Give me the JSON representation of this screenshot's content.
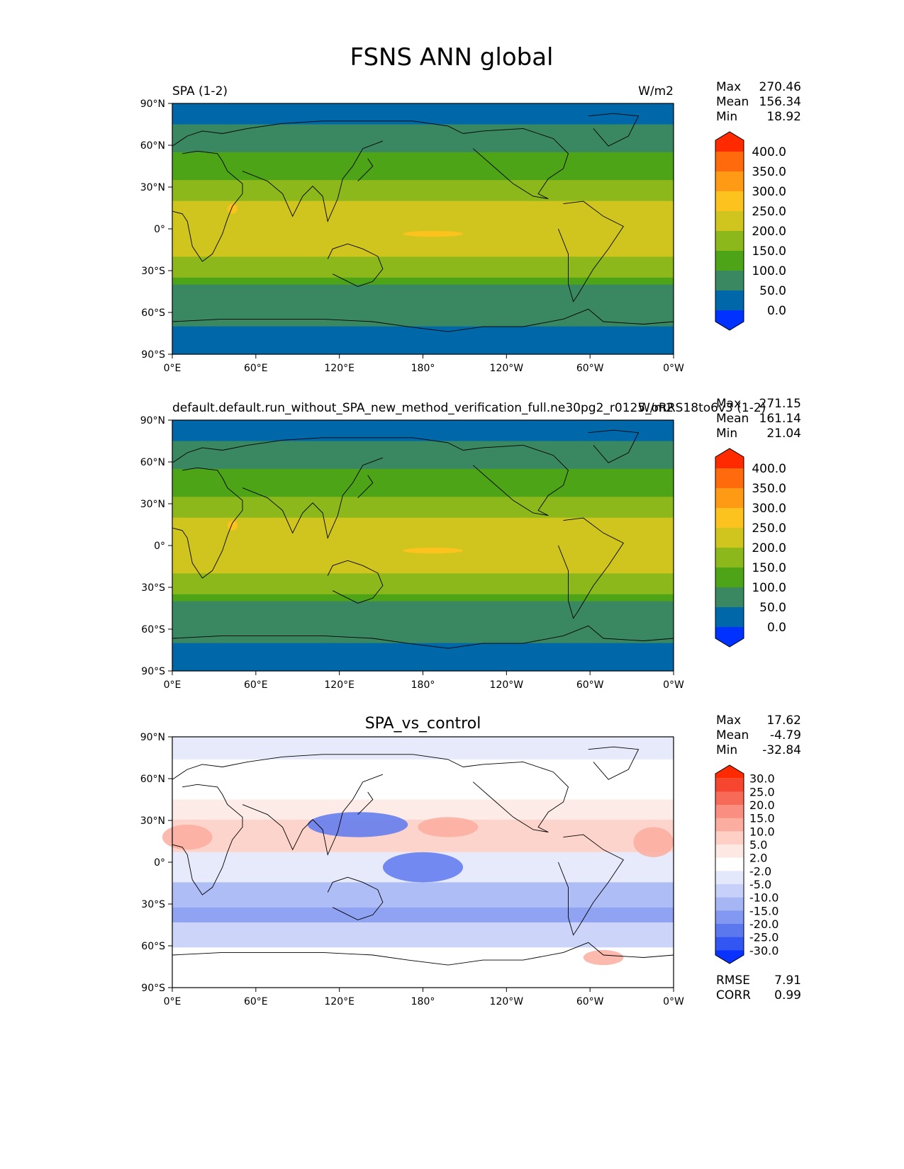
{
  "title": "FSNS ANN global",
  "lat_ticks": [
    "90°N",
    "60°N",
    "30°N",
    "0°",
    "30°S",
    "60°S",
    "90°S"
  ],
  "lon_ticks": [
    "0°E",
    "60°E",
    "120°E",
    "180°",
    "120°W",
    "60°W",
    "0°W"
  ],
  "chart_data": [
    {
      "type": "heatmap",
      "title_left": "SPA (1-2)",
      "title_right": "W/m2",
      "stats": {
        "max_label": "Max",
        "max": "270.46",
        "mean_label": "Mean",
        "mean": "156.34",
        "min_label": "Min",
        "min": "18.92"
      },
      "levels": [
        "400.0",
        "350.0",
        "300.0",
        "250.0",
        "200.0",
        "150.0",
        "100.0",
        "50.0",
        "0.0"
      ],
      "colors": [
        "#ff2a00",
        "#ff6a0d",
        "#ff9a15",
        "#fcc21e",
        "#d0c41f",
        "#8cb81c",
        "#4da416",
        "#3a8862",
        "#0068a8",
        "#0032ff"
      ]
    },
    {
      "type": "heatmap",
      "title_left": "default.default.run_without_SPA_new_method_verification_full.ne30pg2_r0125_oRRS18to6v3 (1-2)",
      "title_right": "W/m2",
      "stats": {
        "max_label": "Max",
        "max": "271.15",
        "mean_label": "Mean",
        "mean": "161.14",
        "min_label": "Min",
        "min": "21.04"
      },
      "levels": [
        "400.0",
        "350.0",
        "300.0",
        "250.0",
        "200.0",
        "150.0",
        "100.0",
        "50.0",
        "0.0"
      ],
      "colors": [
        "#ff2a00",
        "#ff6a0d",
        "#ff9a15",
        "#fcc21e",
        "#d0c41f",
        "#8cb81c",
        "#4da416",
        "#3a8862",
        "#0068a8",
        "#0032ff"
      ]
    },
    {
      "type": "heatmap",
      "title_center": "SPA_vs_control",
      "stats": {
        "max_label": "Max",
        "max": "17.62",
        "mean_label": "Mean",
        "mean": "-4.79",
        "min_label": "Min",
        "min": "-32.84"
      },
      "levels": [
        "30.0",
        "25.0",
        "20.0",
        "15.0",
        "10.0",
        "5.0",
        "2.0",
        "-2.0",
        "-5.0",
        "-10.0",
        "-15.0",
        "-20.0",
        "-25.0",
        "-30.0"
      ],
      "colors": [
        "#ff2a00",
        "#f6462f",
        "#f76a58",
        "#fa8e80",
        "#fbad9f",
        "#fdcfc5",
        "#fde9e4",
        "#ffffff",
        "#e3e8fb",
        "#c6d0f8",
        "#a6b6f5",
        "#8399f1",
        "#5c78ee",
        "#3256f2",
        "#0a32ff"
      ],
      "rmse_label": "RMSE",
      "rmse": "7.91",
      "corr_label": "CORR",
      "corr": "0.99"
    }
  ]
}
